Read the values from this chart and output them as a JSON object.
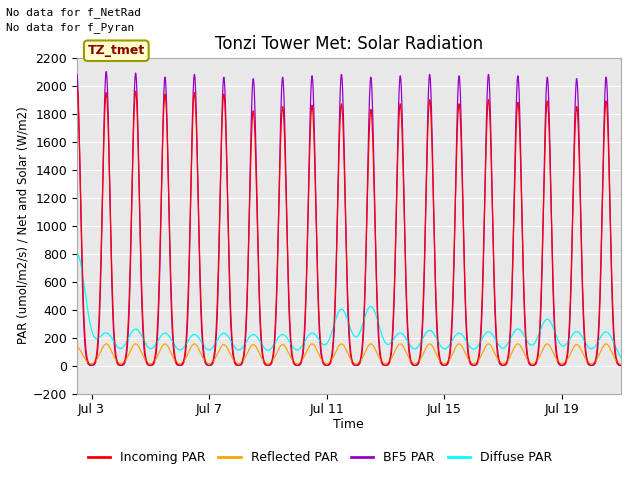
{
  "title": "Tonzi Tower Met: Solar Radiation",
  "xlabel": "Time",
  "ylabel": "PAR (umol/m2/s) / Net and Solar (W/m2)",
  "ylim": [
    -200,
    2200
  ],
  "yticks": [
    -200,
    0,
    200,
    400,
    600,
    800,
    1000,
    1200,
    1400,
    1600,
    1800,
    2000,
    2200
  ],
  "bg_color": "#e8e8e8",
  "grid_color": "#ffffff",
  "no_data_text1": "No data for f_NetRad",
  "no_data_text2": "No data for f_Pyran",
  "annotation_label": "TZ_tmet",
  "annotation_bg": "#ffffcc",
  "annotation_border": "#999900",
  "annotation_text_color": "#8B0000",
  "colors": {
    "incoming": "#ff0000",
    "reflected": "#ffa500",
    "bfs": "#9900cc",
    "diffuse": "#00ffff"
  },
  "legend_labels": [
    "Incoming PAR",
    "Reflected PAR",
    "BF5 PAR",
    "Diffuse PAR"
  ],
  "title_fontsize": 12,
  "axis_fontsize": 9,
  "tick_fontsize": 9
}
